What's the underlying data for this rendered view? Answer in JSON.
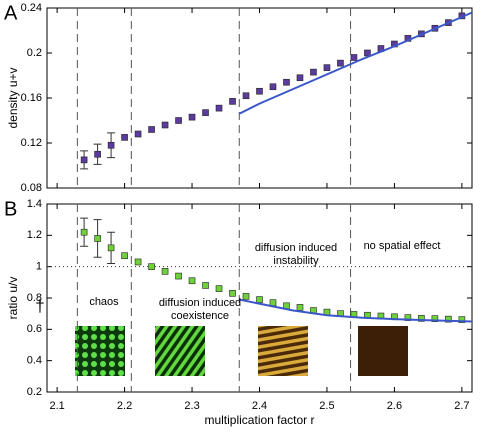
{
  "chart_data": [
    {
      "type": "scatter",
      "panel_label": "A",
      "ylabel": "density u+v",
      "xlim": [
        2.085,
        2.715
      ],
      "xticks": [
        2.1,
        2.2,
        2.3,
        2.4,
        2.5,
        2.6,
        2.7
      ],
      "xtick_labels": false,
      "ylim": [
        0.08,
        0.24
      ],
      "yticks": [
        0.08,
        0.12,
        0.16,
        0.2,
        0.24
      ],
      "vlines": [
        2.13,
        2.21,
        2.37,
        2.535
      ],
      "series": [
        {
          "style": "markers",
          "color": "#5b3c9e",
          "x": [
            2.14,
            2.16,
            2.18,
            2.2,
            2.22,
            2.24,
            2.26,
            2.28,
            2.3,
            2.32,
            2.34,
            2.36,
            2.38,
            2.4,
            2.42,
            2.44,
            2.46,
            2.48,
            2.5,
            2.52,
            2.54,
            2.56,
            2.58,
            2.6,
            2.62,
            2.64,
            2.66,
            2.68,
            2.7
          ],
          "values": [
            0.105,
            0.11,
            0.118,
            0.125,
            0.128,
            0.132,
            0.136,
            0.14,
            0.143,
            0.147,
            0.151,
            0.157,
            0.162,
            0.166,
            0.17,
            0.174,
            0.178,
            0.183,
            0.187,
            0.191,
            0.196,
            0.2,
            0.204,
            0.208,
            0.213,
            0.217,
            0.222,
            0.227,
            0.233
          ],
          "errors": [
            0.008,
            0.009,
            0.011,
            null,
            null,
            null,
            null,
            null,
            null,
            null,
            null,
            null,
            null,
            null,
            null,
            null,
            null,
            null,
            null,
            null,
            null,
            null,
            null,
            null,
            null,
            null,
            null,
            null,
            null
          ]
        },
        {
          "style": "line",
          "color": "#3a57c9",
          "x": [
            2.37,
            2.4,
            2.45,
            2.5,
            2.55,
            2.6,
            2.65,
            2.7,
            2.715
          ],
          "values": [
            0.146,
            0.155,
            0.168,
            0.181,
            0.194,
            0.206,
            0.219,
            0.232,
            0.236
          ]
        }
      ]
    },
    {
      "type": "scatter",
      "panel_label": "B",
      "ylabel": "ratio u/v",
      "xlabel": "multiplication factor r",
      "xlim": [
        2.085,
        2.715
      ],
      "xticks": [
        2.1,
        2.2,
        2.3,
        2.4,
        2.5,
        2.6,
        2.7
      ],
      "xtick_labels": true,
      "ylim": [
        0.2,
        1.4
      ],
      "yticks": [
        0.2,
        0.4,
        0.6,
        0.8,
        1,
        1.2,
        1.4
      ],
      "vlines": [
        2.13,
        2.21,
        2.37,
        2.535
      ],
      "hline": 1,
      "annotations": [
        {
          "lines": [
            "†"
          ]
        },
        {
          "lines": [
            "chaos"
          ]
        },
        {
          "lines": [
            "diffusion induced",
            "coexistence"
          ]
        },
        {
          "lines": [
            "diffusion induced",
            "instability"
          ]
        },
        {
          "lines": [
            "no spatial effect"
          ]
        }
      ],
      "series": [
        {
          "style": "markers",
          "color": "#6fd13a",
          "x": [
            2.14,
            2.16,
            2.18,
            2.2,
            2.22,
            2.24,
            2.26,
            2.28,
            2.3,
            2.32,
            2.34,
            2.36,
            2.38,
            2.4,
            2.42,
            2.44,
            2.46,
            2.48,
            2.5,
            2.52,
            2.54,
            2.56,
            2.58,
            2.6,
            2.62,
            2.64,
            2.66,
            2.68,
            2.7
          ],
          "values": [
            1.22,
            1.18,
            1.12,
            1.07,
            1.03,
            1.0,
            0.97,
            0.94,
            0.91,
            0.88,
            0.86,
            0.83,
            0.81,
            0.79,
            0.77,
            0.75,
            0.74,
            0.72,
            0.71,
            0.7,
            0.695,
            0.69,
            0.685,
            0.68,
            0.675,
            0.67,
            0.668,
            0.665,
            0.662
          ],
          "errors": [
            0.09,
            0.12,
            0.1,
            null,
            null,
            null,
            null,
            null,
            null,
            null,
            null,
            null,
            null,
            null,
            null,
            null,
            null,
            null,
            null,
            null,
            null,
            null,
            null,
            null,
            null,
            null,
            null,
            null,
            null
          ]
        },
        {
          "style": "line",
          "color": "#3a57c9",
          "x": [
            2.37,
            2.45,
            2.5,
            2.55,
            2.6,
            2.65,
            2.715
          ],
          "values": [
            0.79,
            0.72,
            0.69,
            0.675,
            0.665,
            0.658,
            0.65
          ]
        }
      ]
    }
  ]
}
